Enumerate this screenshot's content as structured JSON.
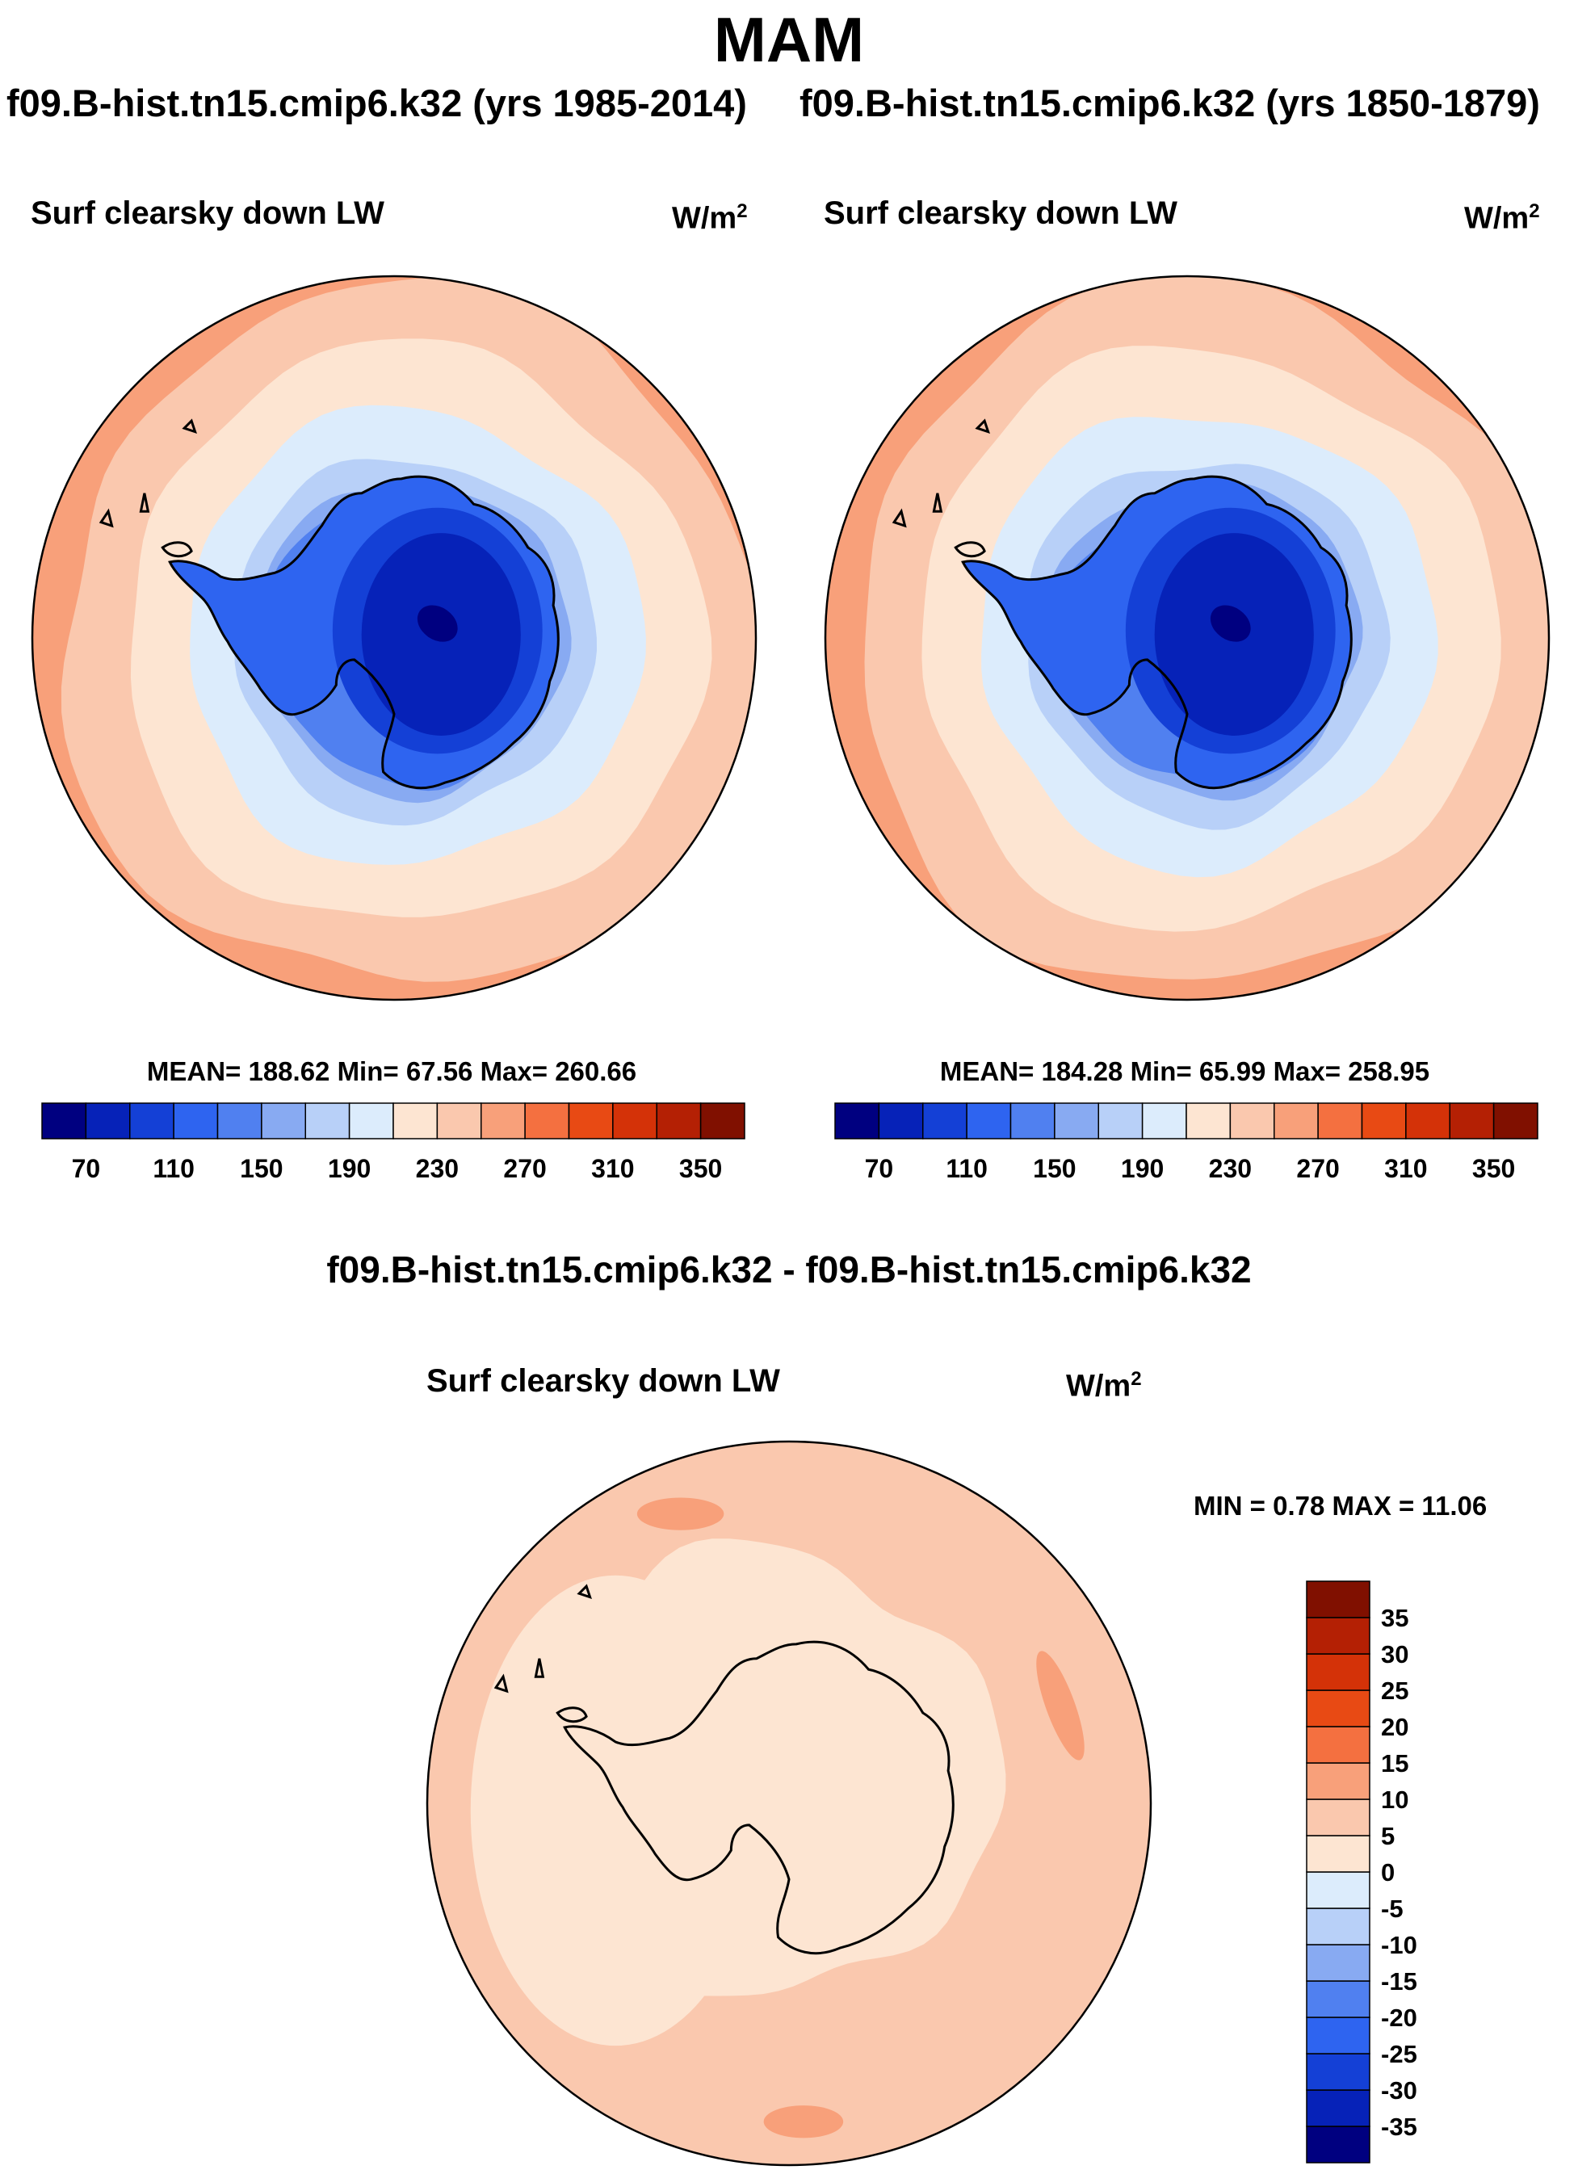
{
  "title": "MAM",
  "case_labels": {
    "left": "f09.B-hist.tn15.cmip6.k32 (yrs 1985-2014)",
    "right": "f09.B-hist.tn15.cmip6.k32 (yrs 1850-1879)"
  },
  "difference_title": "f09.B-hist.tn15.cmip6.k32 - f09.B-hist.tn15.cmip6.k32",
  "panels": [
    {
      "variable": "Surf clearsky down LW",
      "units": "W/m",
      "units_exp": "2",
      "stats": "MEAN= 188.62  Min=  67.56  Max= 260.66"
    },
    {
      "variable": "Surf clearsky down LW",
      "units": "W/m",
      "units_exp": "2",
      "stats": "MEAN= 184.28  Min=  65.99  Max= 258.95"
    },
    {
      "variable": "Surf clearsky down LW",
      "units": "W/m",
      "units_exp": "2",
      "stats": "MIN =   0.78 MAX =  11.06"
    }
  ],
  "colorbar_abs": {
    "colors": [
      "#000080",
      "#0622b8",
      "#1440d6",
      "#2e64f0",
      "#5080f0",
      "#88aaf2",
      "#b8d0f8",
      "#dcecfc",
      "#fde5d2",
      "#fac8ae",
      "#f8a07a",
      "#f47040",
      "#e84a14",
      "#d43208",
      "#b42004",
      "#801000"
    ],
    "labels": [
      "70",
      "110",
      "150",
      "190",
      "230",
      "270",
      "310",
      "350"
    ]
  },
  "colorbar_diff": {
    "colors": [
      "#000080",
      "#0622b8",
      "#1440d6",
      "#2e64f0",
      "#5080f0",
      "#88aaf2",
      "#b8d0f8",
      "#dcecfc",
      "#fde5d2",
      "#fac8ae",
      "#f8a07a",
      "#f47040",
      "#e84a14",
      "#d43208",
      "#b42004",
      "#801000"
    ],
    "labels": [
      "-35",
      "-30",
      "-25",
      "-20",
      "-15",
      "-10",
      "-5",
      "0",
      "5",
      "10",
      "15",
      "20",
      "25",
      "30",
      "35"
    ]
  },
  "chart_data": [
    {
      "type": "heatmap",
      "projection": "south-polar-stereographic",
      "title": "Surf clearsky down LW",
      "units": "W/m2",
      "mean": 188.62,
      "min": 67.56,
      "max": 260.66,
      "levels": [
        70,
        90,
        110,
        130,
        150,
        170,
        190,
        210,
        230,
        250,
        270,
        290,
        310,
        330,
        350
      ]
    },
    {
      "type": "heatmap",
      "projection": "south-polar-stereographic",
      "title": "Surf clearsky down LW",
      "units": "W/m2",
      "mean": 184.28,
      "min": 65.99,
      "max": 258.95,
      "levels": [
        70,
        90,
        110,
        130,
        150,
        170,
        190,
        210,
        230,
        250,
        270,
        290,
        310,
        330,
        350
      ]
    },
    {
      "type": "heatmap",
      "projection": "south-polar-stereographic",
      "title": "Surf clearsky down LW",
      "units": "W/m2",
      "min": 0.78,
      "max": 11.06,
      "levels": [
        -35,
        -30,
        -25,
        -20,
        -15,
        -10,
        -5,
        0,
        5,
        10,
        15,
        20,
        25,
        30,
        35
      ]
    }
  ]
}
